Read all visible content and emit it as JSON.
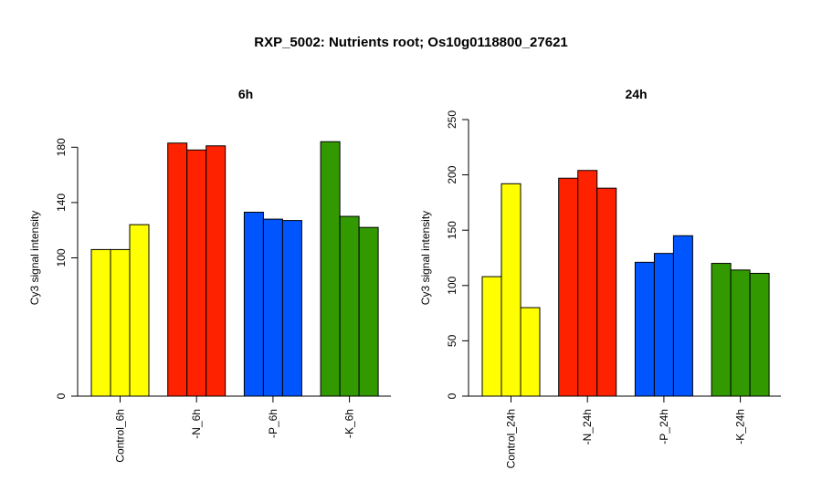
{
  "title": "RXP_5002: Nutrients root; Os10g0118800_27621",
  "chart_data": [
    {
      "type": "bar",
      "title": "6h",
      "ylabel": "Cy3 signal intensity",
      "ylim": [
        0,
        200
      ],
      "yticks": [
        0,
        100,
        140,
        180
      ],
      "categories": [
        "Control_6h",
        "-N_6h",
        "-P_6h",
        "-K_6h"
      ],
      "colors": [
        "#ffff00",
        "#ff2200",
        "#0055ff",
        "#339900"
      ],
      "values": [
        [
          106,
          106,
          124
        ],
        [
          183,
          178,
          181
        ],
        [
          133,
          128,
          127
        ],
        [
          184,
          130,
          122
        ]
      ]
    },
    {
      "type": "bar",
      "title": "24h",
      "ylabel": "Cy3 signal intensity",
      "ylim": [
        0,
        250
      ],
      "yticks": [
        0,
        50,
        100,
        150,
        200,
        250
      ],
      "categories": [
        "Control_24h",
        "-N_24h",
        "-P_24h",
        "-K_24h"
      ],
      "colors": [
        "#ffff00",
        "#ff2200",
        "#0055ff",
        "#339900"
      ],
      "values": [
        [
          108,
          192,
          80
        ],
        [
          197,
          204,
          188
        ],
        [
          121,
          129,
          145
        ],
        [
          120,
          114,
          111
        ]
      ]
    }
  ]
}
